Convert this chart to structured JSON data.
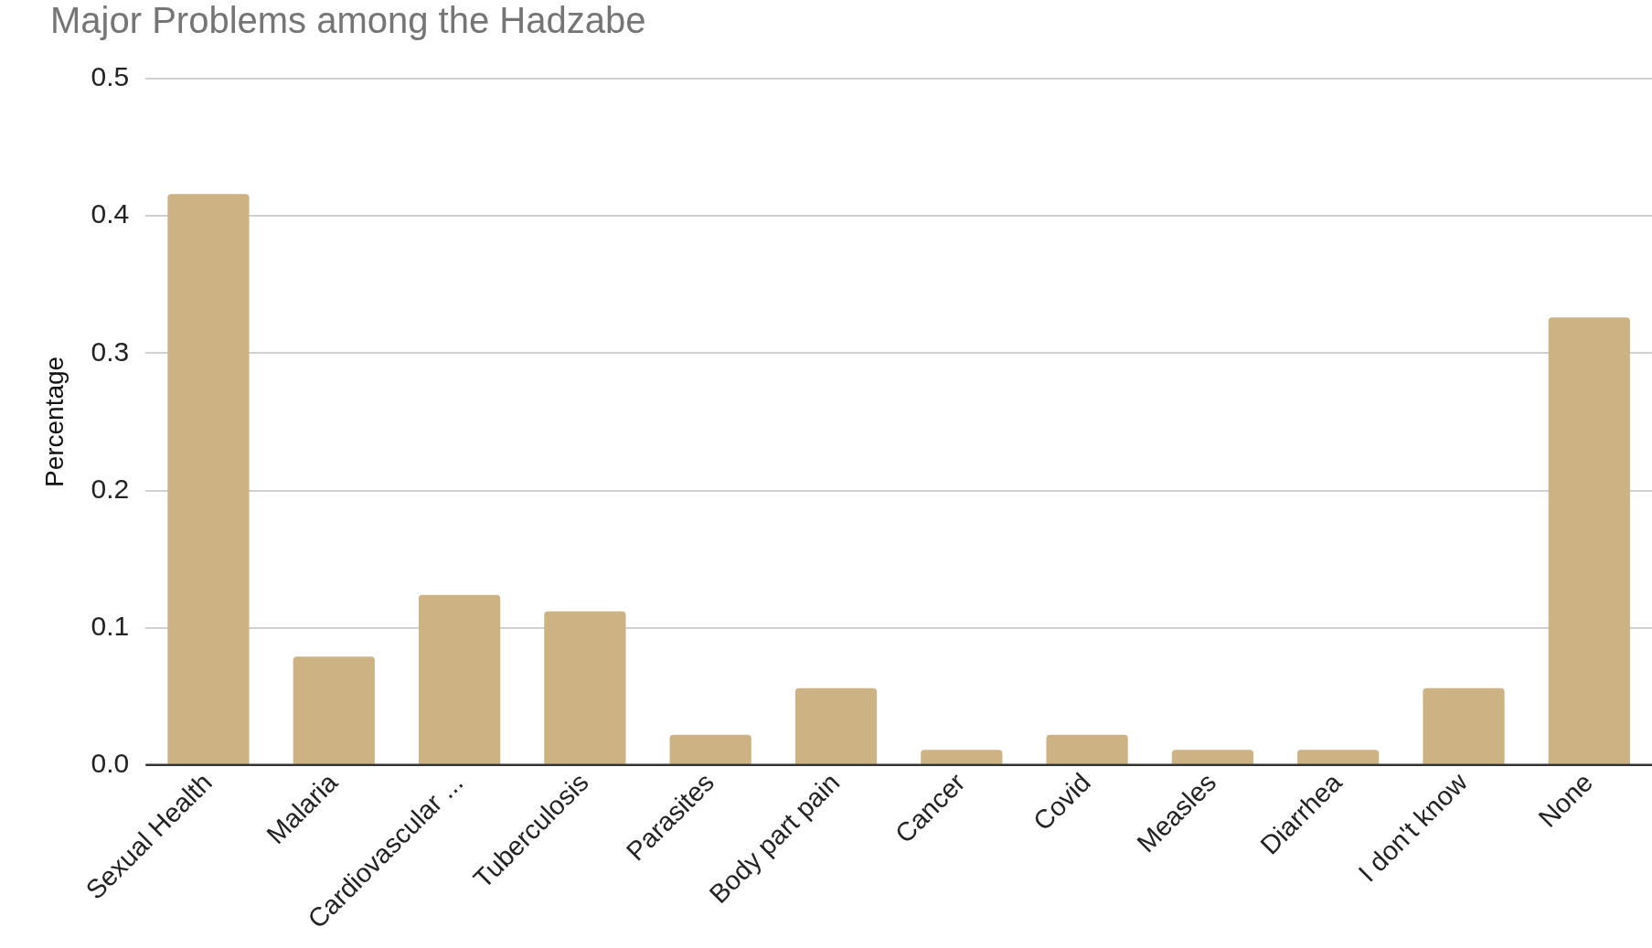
{
  "chart_data": {
    "type": "bar",
    "title": "Major Problems among the Hadzabe",
    "ylabel": "Percentage",
    "categories": [
      "Sexual Health",
      "Malaria",
      "Cardiovascular ...",
      "Tuberculosis",
      "Parasites",
      "Body part pain",
      "Cancer",
      "Covid",
      "Measles",
      "Diarrhea",
      "I don't know",
      "None"
    ],
    "values": [
      0.416,
      0.079,
      0.124,
      0.112,
      0.022,
      0.056,
      0.011,
      0.022,
      0.011,
      0.011,
      0.056,
      0.326
    ],
    "color": "#cdb383",
    "ylim": [
      0,
      0.5
    ],
    "yticks": [
      {
        "value": 0,
        "label": "0.0"
      },
      0.1,
      0.2,
      0.3,
      0.4,
      0.5
    ],
    "grid": "y"
  }
}
